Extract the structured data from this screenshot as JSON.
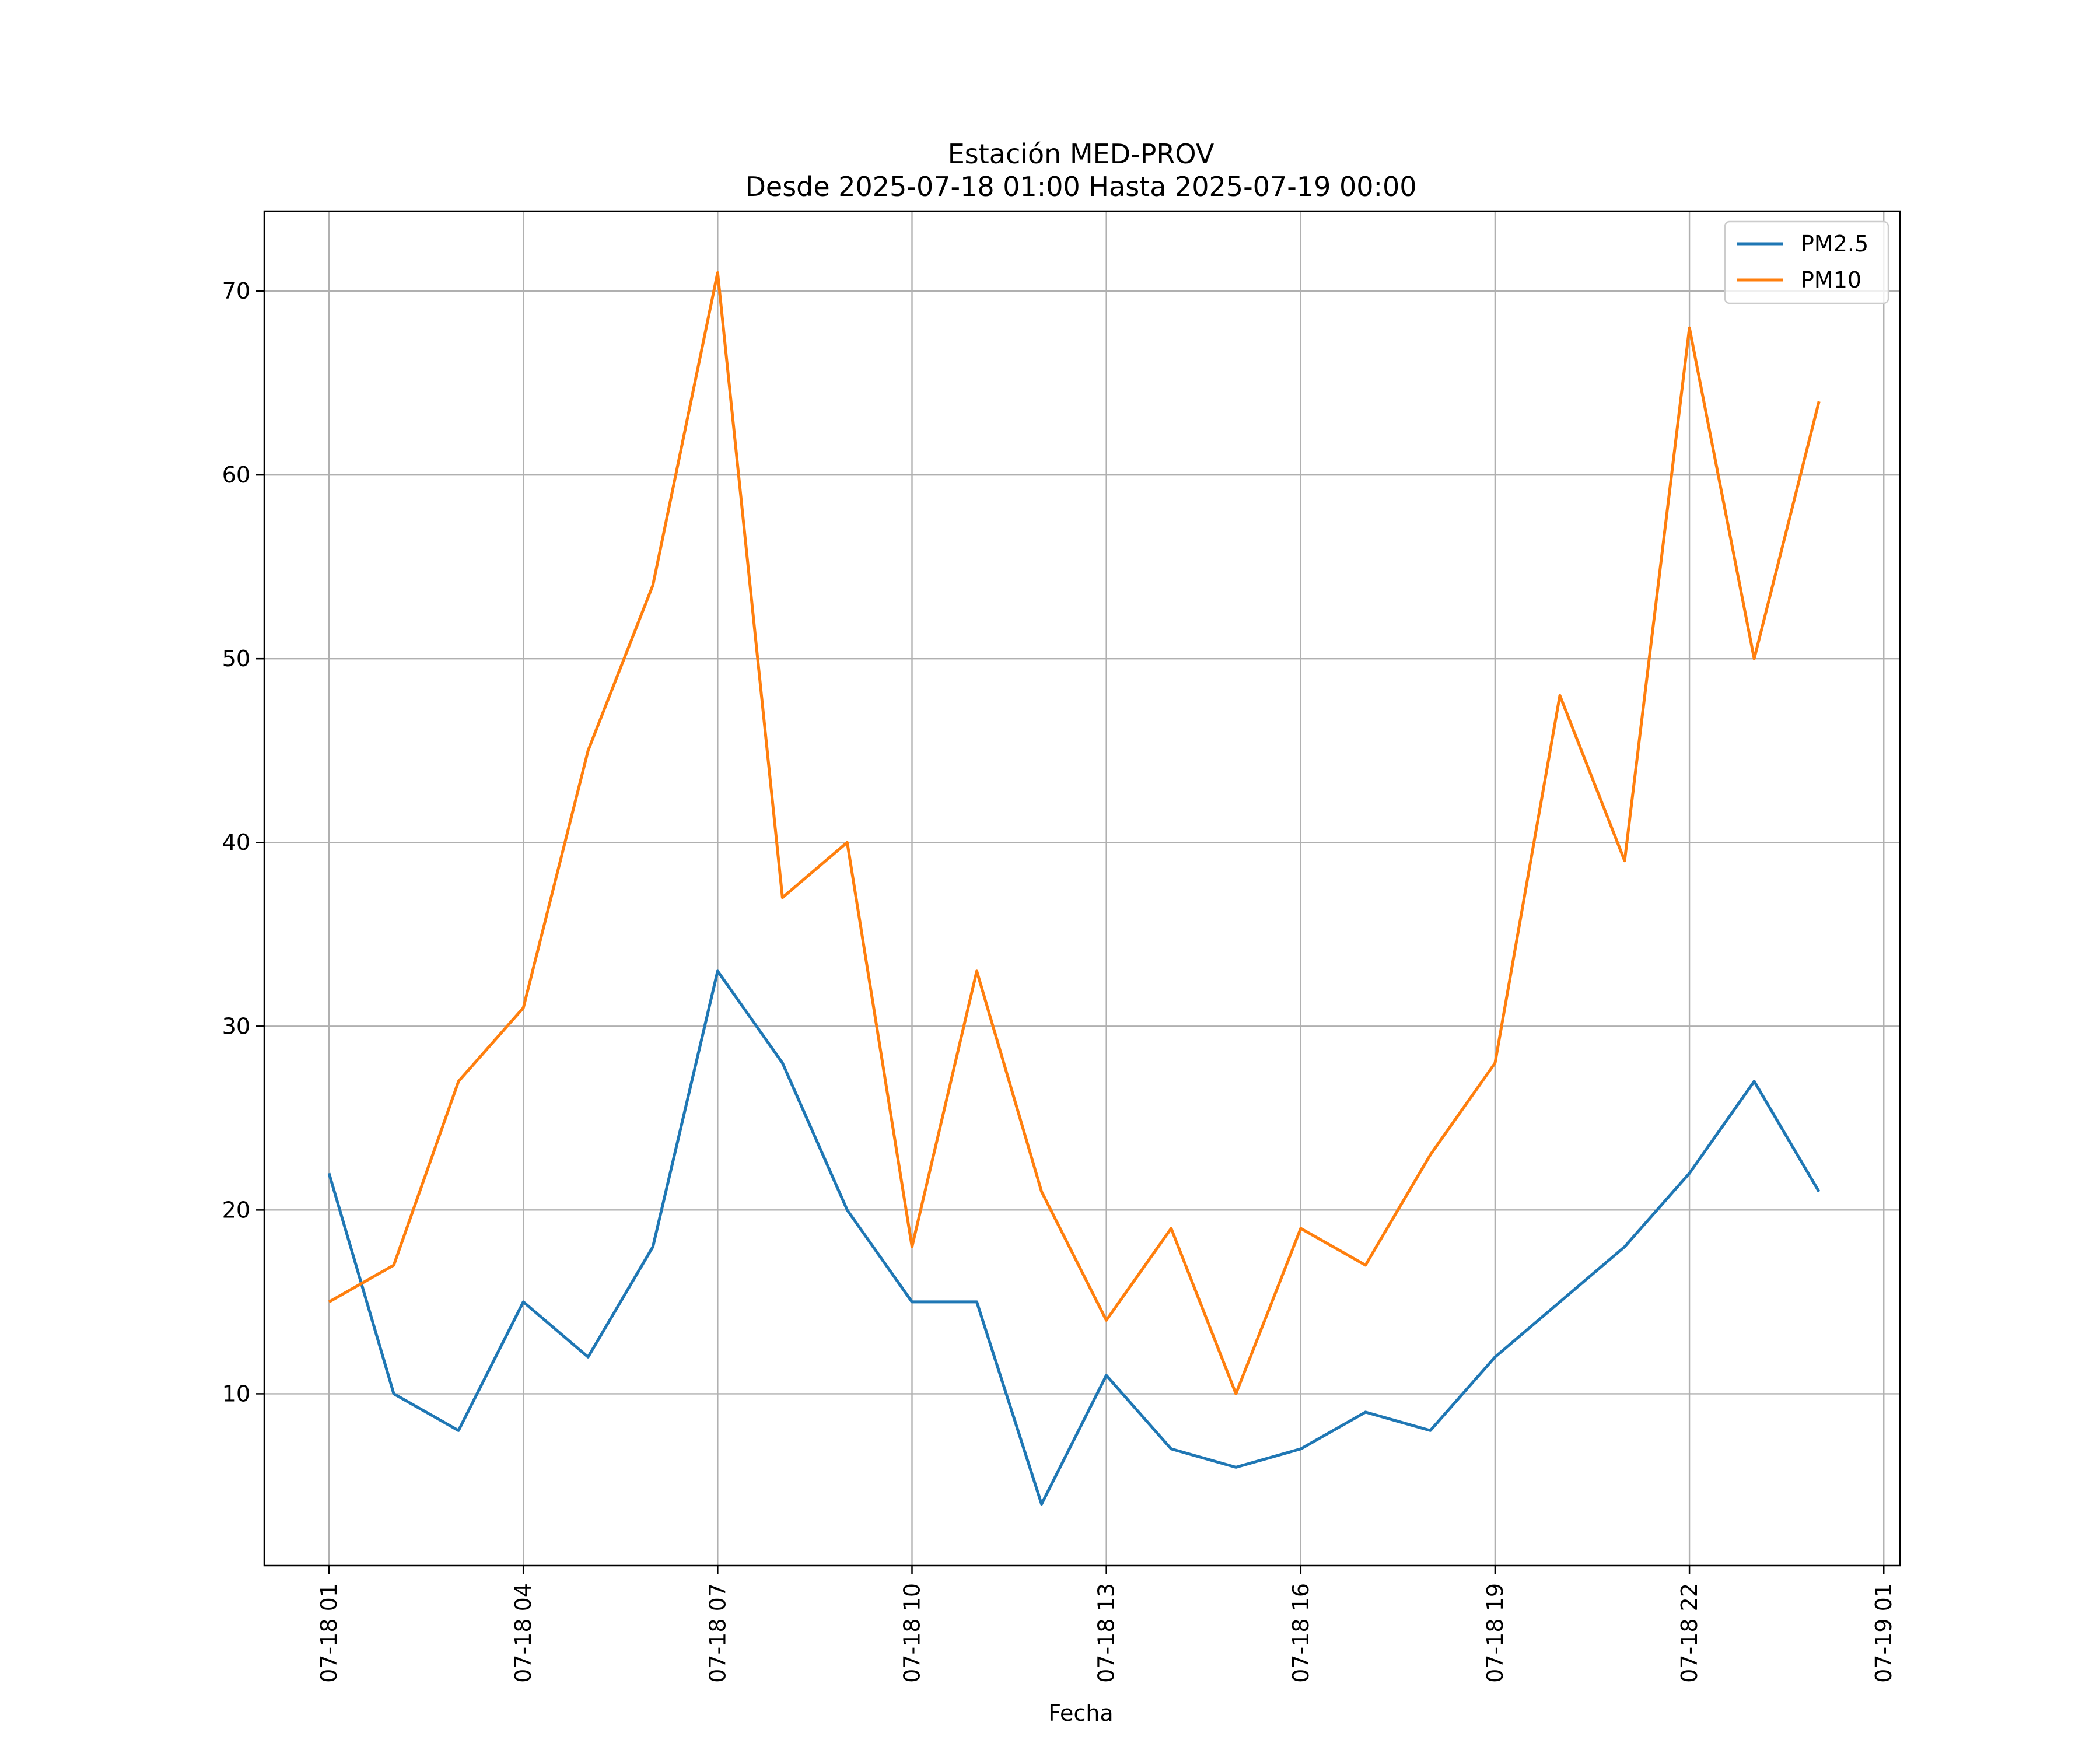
{
  "chart_data": {
    "type": "line",
    "title": "Estación MED-PROV",
    "subtitle": "Desde 2025-07-18 01:00 Hasta 2025-07-19 00:00",
    "xlabel": "Fecha",
    "ylabel": "",
    "x": [
      "2025-07-18 01:00",
      "2025-07-18 02:00",
      "2025-07-18 03:00",
      "2025-07-18 04:00",
      "2025-07-18 05:00",
      "2025-07-18 06:00",
      "2025-07-18 07:00",
      "2025-07-18 08:00",
      "2025-07-18 09:00",
      "2025-07-18 10:00",
      "2025-07-18 11:00",
      "2025-07-18 12:00",
      "2025-07-18 13:00",
      "2025-07-18 14:00",
      "2025-07-18 15:00",
      "2025-07-18 16:00",
      "2025-07-18 17:00",
      "2025-07-18 18:00",
      "2025-07-18 19:00",
      "2025-07-18 20:00",
      "2025-07-18 21:00",
      "2025-07-18 22:00",
      "2025-07-18 23:00",
      "2025-07-19 00:00"
    ],
    "series": [
      {
        "name": "PM2.5",
        "color": "#1f77b4",
        "values": [
          22,
          10,
          8,
          15,
          12,
          18,
          33,
          28,
          20,
          15,
          15,
          4,
          11,
          7,
          6,
          7,
          9,
          8,
          12,
          15,
          18,
          22,
          27,
          21
        ]
      },
      {
        "name": "PM10",
        "color": "#ff7f0e",
        "values": [
          15,
          17,
          27,
          31,
          45,
          54,
          71,
          37,
          40,
          18,
          33,
          21,
          14,
          19,
          10,
          19,
          17,
          23,
          28,
          48,
          39,
          68,
          50,
          64
        ]
      }
    ],
    "xlim": [
      "2025-07-18 00:00",
      "2025-07-19 01:15"
    ],
    "ylim": [
      0.65,
      74.35
    ],
    "x_ticks": [
      {
        "at": "2025-07-18 01:00",
        "label": "07-18 01"
      },
      {
        "at": "2025-07-18 04:00",
        "label": "07-18 04"
      },
      {
        "at": "2025-07-18 07:00",
        "label": "07-18 07"
      },
      {
        "at": "2025-07-18 10:00",
        "label": "07-18 10"
      },
      {
        "at": "2025-07-18 13:00",
        "label": "07-18 13"
      },
      {
        "at": "2025-07-18 16:00",
        "label": "07-18 16"
      },
      {
        "at": "2025-07-18 19:00",
        "label": "07-18 19"
      },
      {
        "at": "2025-07-18 22:00",
        "label": "07-18 22"
      },
      {
        "at": "2025-07-19 01:00",
        "label": "07-19 01"
      }
    ],
    "y_ticks": [
      10,
      20,
      30,
      40,
      50,
      60,
      70
    ],
    "grid": true,
    "legend": "top-right"
  }
}
